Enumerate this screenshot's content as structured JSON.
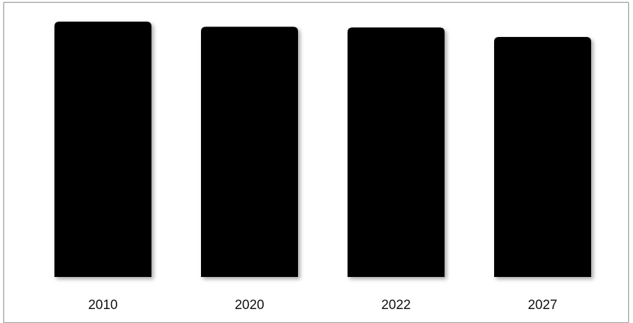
{
  "chart_data": {
    "type": "bar",
    "title": "",
    "xlabel": "",
    "ylabel": "",
    "categories": [
      "2010",
      "2020",
      "2022",
      "2027"
    ],
    "values": [
      100,
      98,
      97.7,
      94
    ],
    "ylim": [
      0,
      100
    ],
    "grid": false,
    "legend": "none",
    "bar_color": "#000000"
  }
}
